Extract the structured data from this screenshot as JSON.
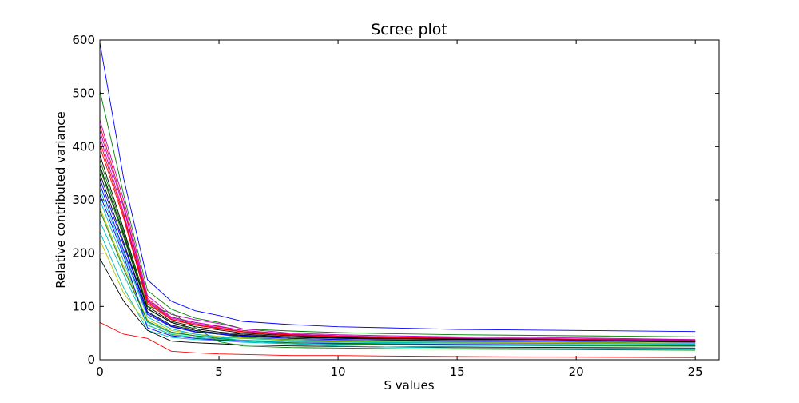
{
  "chart_data": {
    "type": "line",
    "title": "Scree plot",
    "xlabel": "S values",
    "ylabel": "Relative contributed variance",
    "xlim": [
      0,
      26
    ],
    "ylim": [
      0,
      600
    ],
    "xticks": [
      0,
      5,
      10,
      15,
      20,
      25
    ],
    "yticks": [
      0,
      100,
      200,
      300,
      400,
      500,
      600
    ],
    "grid": false,
    "legend": "none",
    "series": [
      {
        "color": "#0000ff",
        "x": [
          0,
          1,
          2,
          3,
          4,
          5,
          6,
          8,
          10,
          12,
          15,
          20,
          25
        ],
        "y": [
          595,
          340,
          150,
          110,
          92,
          83,
          72,
          66,
          62,
          60,
          57,
          55,
          53
        ]
      },
      {
        "color": "#008000",
        "x": [
          0,
          1,
          2,
          3,
          4,
          5,
          6,
          8,
          10,
          12,
          15,
          20,
          25
        ],
        "y": [
          505,
          310,
          130,
          95,
          78,
          70,
          58,
          54,
          51,
          49,
          47,
          45,
          43
        ]
      },
      {
        "color": "#ff0000",
        "x": [
          0,
          1,
          2,
          3,
          4,
          5,
          6,
          8,
          10,
          12,
          15,
          20,
          25
        ],
        "y": [
          70,
          48,
          40,
          16,
          13,
          11,
          10,
          8,
          8,
          7,
          6,
          5,
          4
        ]
      },
      {
        "color": "#00bfbf",
        "x": [
          0,
          1,
          2,
          3,
          4,
          5,
          6,
          8,
          10,
          12,
          15,
          20,
          25
        ],
        "y": [
          240,
          135,
          55,
          42,
          38,
          36,
          33,
          30,
          29,
          28,
          27,
          26,
          25
        ]
      },
      {
        "color": "#bf00bf",
        "x": [
          0,
          1,
          2,
          3,
          4,
          5,
          6,
          8,
          10,
          12,
          15,
          20,
          25
        ],
        "y": [
          450,
          300,
          120,
          85,
          75,
          68,
          58,
          50,
          47,
          45,
          43,
          41,
          38
        ]
      },
      {
        "color": "#bfbf00",
        "x": [
          0,
          1,
          2,
          3,
          4,
          5,
          6,
          8,
          10,
          12,
          15,
          20,
          25
        ],
        "y": [
          225,
          125,
          65,
          48,
          42,
          38,
          35,
          32,
          30,
          29,
          28,
          27,
          26
        ]
      },
      {
        "color": "#000000",
        "x": [
          0,
          1,
          2,
          3,
          4,
          5,
          6,
          8,
          10,
          12,
          15,
          20,
          25
        ],
        "y": [
          190,
          110,
          55,
          35,
          32,
          30,
          28,
          26,
          25,
          24,
          24,
          23,
          22
        ]
      },
      {
        "color": "#0000ff",
        "x": [
          0,
          1,
          2,
          3,
          4,
          5,
          6,
          8,
          10,
          12,
          15,
          20,
          25
        ],
        "y": [
          330,
          205,
          85,
          62,
          52,
          48,
          45,
          40,
          38,
          37,
          36,
          35,
          33
        ]
      },
      {
        "color": "#008000",
        "x": [
          0,
          1,
          2,
          3,
          4,
          5,
          6,
          8,
          10,
          12,
          15,
          20,
          25
        ],
        "y": [
          360,
          230,
          95,
          70,
          55,
          48,
          42,
          38,
          36,
          35,
          34,
          33,
          31
        ]
      },
      {
        "color": "#ff0000",
        "x": [
          0,
          1,
          2,
          3,
          4,
          5,
          6,
          8,
          10,
          12,
          15,
          20,
          25
        ],
        "y": [
          440,
          290,
          115,
          80,
          70,
          62,
          55,
          48,
          45,
          43,
          41,
          39,
          37
        ]
      },
      {
        "color": "#00bfbf",
        "x": [
          0,
          1,
          2,
          3,
          4,
          5,
          6,
          8,
          10,
          12,
          15,
          20,
          25
        ],
        "y": [
          300,
          185,
          70,
          50,
          45,
          42,
          40,
          36,
          34,
          33,
          32,
          31,
          30
        ]
      },
      {
        "color": "#bf00bf",
        "x": [
          0,
          1,
          2,
          3,
          4,
          5,
          6,
          8,
          10,
          12,
          15,
          20,
          25
        ],
        "y": [
          420,
          275,
          110,
          78,
          68,
          60,
          53,
          47,
          44,
          42,
          40,
          38,
          36
        ]
      },
      {
        "color": "#bfbf00",
        "x": [
          0,
          1,
          2,
          3,
          4,
          5,
          6,
          8,
          10,
          12,
          15,
          20,
          25
        ],
        "y": [
          285,
          175,
          75,
          55,
          48,
          44,
          41,
          37,
          35,
          34,
          33,
          32,
          31
        ]
      },
      {
        "color": "#000000",
        "x": [
          0,
          1,
          2,
          3,
          4,
          5,
          6,
          8,
          10,
          12,
          15,
          20,
          25
        ],
        "y": [
          385,
          245,
          100,
          72,
          62,
          56,
          50,
          45,
          42,
          41,
          40,
          38,
          36
        ]
      },
      {
        "color": "#0000ff",
        "x": [
          0,
          1,
          2,
          3,
          4,
          5,
          6,
          8,
          10,
          12,
          15,
          20,
          25
        ],
        "y": [
          310,
          195,
          60,
          45,
          40,
          37,
          35,
          32,
          31,
          30,
          29,
          28,
          27
        ]
      },
      {
        "color": "#008000",
        "x": [
          0,
          1,
          2,
          3,
          4,
          5,
          6,
          8,
          10,
          12,
          15,
          20,
          25
        ],
        "y": [
          375,
          240,
          100,
          88,
          60,
          34,
          26,
          23,
          22,
          21,
          20,
          19,
          18
        ]
      },
      {
        "color": "#ff0000",
        "x": [
          0,
          1,
          2,
          3,
          4,
          5,
          6,
          8,
          10,
          12,
          15,
          20,
          25
        ],
        "y": [
          400,
          265,
          105,
          75,
          65,
          58,
          52,
          46,
          43,
          41,
          39,
          37,
          35
        ]
      },
      {
        "color": "#00bfbf",
        "x": [
          0,
          1,
          2,
          3,
          4,
          5,
          6,
          8,
          10,
          12,
          15,
          20,
          25
        ],
        "y": [
          260,
          160,
          65,
          47,
          42,
          39,
          37,
          34,
          33,
          32,
          31,
          30,
          29
        ]
      },
      {
        "color": "#bf00bf",
        "x": [
          0,
          1,
          2,
          3,
          4,
          5,
          6,
          8,
          10,
          12,
          15,
          20,
          25
        ],
        "y": [
          430,
          285,
          112,
          80,
          70,
          63,
          55,
          48,
          45,
          43,
          41,
          39,
          37
        ]
      },
      {
        "color": "#000000",
        "x": [
          0,
          1,
          2,
          3,
          4,
          5,
          6,
          8,
          10,
          12,
          15,
          20,
          25
        ],
        "y": [
          350,
          220,
          90,
          65,
          55,
          50,
          46,
          42,
          40,
          39,
          38,
          37,
          35
        ]
      },
      {
        "color": "#0000ff",
        "x": [
          0,
          1,
          2,
          3,
          4,
          5,
          6,
          8,
          10,
          12,
          15,
          20,
          25
        ],
        "y": [
          340,
          215,
          88,
          63,
          53,
          48,
          44,
          40,
          38,
          37,
          36,
          35,
          34
        ]
      },
      {
        "color": "#008000",
        "x": [
          0,
          1,
          2,
          3,
          4,
          5,
          6,
          8,
          10,
          12,
          15,
          20,
          25
        ],
        "y": [
          280,
          170,
          72,
          52,
          45,
          40,
          36,
          32,
          30,
          29,
          28,
          27,
          26
        ]
      },
      {
        "color": "#00bfbf",
        "x": [
          0,
          1,
          2,
          3,
          4,
          5,
          6,
          8,
          10,
          12,
          15,
          20,
          25
        ],
        "y": [
          320,
          200,
          80,
          58,
          48,
          42,
          36,
          30,
          26,
          24,
          22,
          21,
          20
        ]
      },
      {
        "color": "#ff0000",
        "x": [
          0,
          1,
          2,
          3,
          4,
          5,
          6,
          8,
          10,
          12,
          15,
          20,
          25
        ],
        "y": [
          410,
          270,
          108,
          76,
          66,
          59,
          53,
          47,
          44,
          42,
          40,
          38,
          36
        ]
      },
      {
        "color": "#000000",
        "x": [
          0,
          1,
          2,
          3,
          4,
          5,
          6,
          8,
          10,
          12,
          15,
          20,
          25
        ],
        "y": [
          365,
          235,
          96,
          70,
          58,
          52,
          48,
          43,
          41,
          40,
          39,
          37,
          34
        ]
      }
    ]
  }
}
